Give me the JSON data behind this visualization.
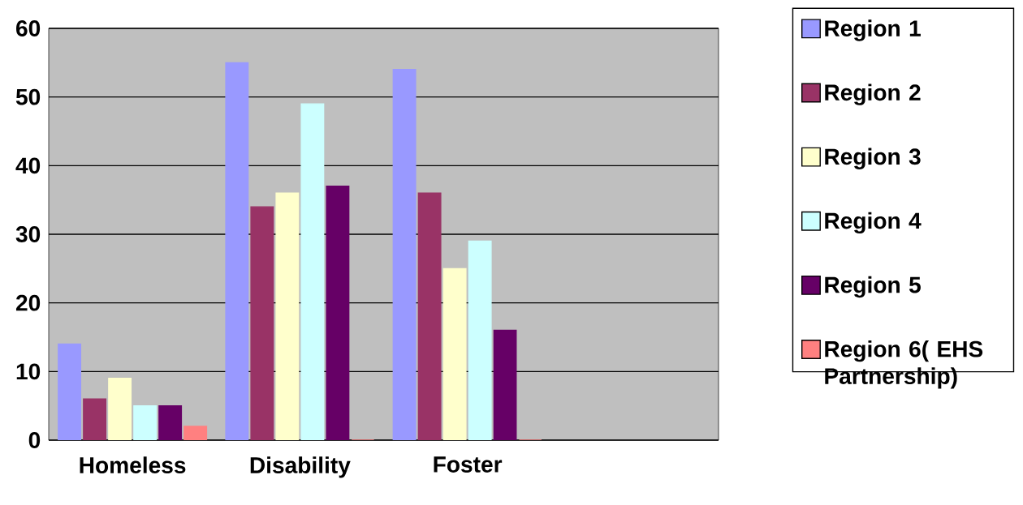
{
  "chart_data": {
    "type": "bar",
    "categories": [
      "Homeless",
      "Disability",
      "Foster",
      null
    ],
    "series": [
      {
        "name": "Region 1",
        "color": "#9999ff",
        "values": [
          14,
          55,
          54,
          null
        ]
      },
      {
        "name": "Region 2",
        "color": "#993366",
        "values": [
          6,
          34,
          36,
          null
        ]
      },
      {
        "name": "Region 3",
        "color": "#ffffcc",
        "values": [
          9,
          36,
          25,
          null
        ]
      },
      {
        "name": "Region 4",
        "color": "#ccffff",
        "values": [
          5,
          49,
          29,
          null
        ]
      },
      {
        "name": "Region 5",
        "color": "#660066",
        "values": [
          5,
          37,
          16,
          null
        ]
      },
      {
        "name": "Region 6( EHS Partnership)",
        "color": "#ff8080",
        "values": [
          2,
          0,
          0,
          null
        ]
      }
    ],
    "ylim": [
      0,
      60
    ],
    "yticks": [
      0,
      10,
      20,
      30,
      40,
      50,
      60
    ],
    "grid": "y",
    "legend": "right"
  }
}
